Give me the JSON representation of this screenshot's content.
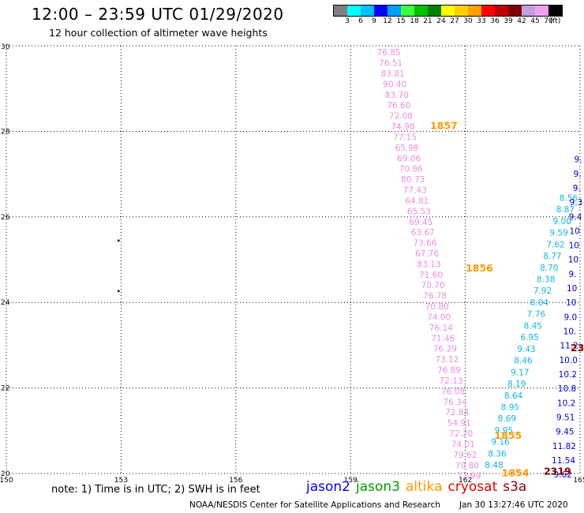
{
  "header": {
    "title": "12:00 – 23:59 UTC 01/29/2020",
    "subtitle": "12 hour collection of altimeter wave heights"
  },
  "legend": {
    "colors": [
      "#808080",
      "#00ffff",
      "#00bfff",
      "#0000ff",
      "#00a0ff",
      "#40ff40",
      "#00c000",
      "#008000",
      "#ffff00",
      "#ffd000",
      "#ffa000",
      "#ff0000",
      "#c00000",
      "#800000",
      "#c0a0e0",
      "#f0a0f0",
      "#000000"
    ],
    "labels": [
      "3",
      "6",
      "9",
      "12",
      "15",
      "18",
      "21",
      "24",
      "27",
      "30",
      "33",
      "36",
      "39",
      "42",
      "45",
      "70",
      "(ft)"
    ]
  },
  "map": {
    "lon_ticks": [
      "150",
      "153",
      "156",
      "159",
      "162",
      "165"
    ],
    "lat_ticks": [
      "20",
      "22",
      "24",
      "26",
      "28",
      "30"
    ],
    "lon_range": [
      150,
      165
    ],
    "lat_range": [
      20,
      30
    ],
    "land_points": [
      {
        "lon": 152.93,
        "lat": 25.45
      },
      {
        "lon": 152.93,
        "lat": 24.27
      }
    ],
    "colors": {
      "altika_track": "#e88ee0",
      "jason3_cyan": "#14b4dc",
      "jason2_blue": "#0000cc",
      "altika_label": "#ff9900",
      "cryosat_label": "#800000"
    },
    "time_labels": [
      {
        "text": "1857",
        "lon": 161.08,
        "lat": 28.15,
        "color": "#ff9900"
      },
      {
        "text": "1856",
        "lon": 162.01,
        "lat": 24.82,
        "color": "#ff9900"
      },
      {
        "text": "1855",
        "lon": 162.76,
        "lat": 20.9,
        "color": "#ff9900"
      },
      {
        "text": "1854",
        "lon": 162.95,
        "lat": 20.03,
        "color": "#ff9900"
      },
      {
        "text": "2319",
        "lon": 164.05,
        "lat": 20.06,
        "color": "#800000"
      },
      {
        "text": "23",
        "lon": 164.75,
        "lat": 22.95,
        "color": "#800000"
      }
    ],
    "tracks": [
      {
        "name": "altika-track",
        "color": "#e88ee0",
        "lon_start": 160.0,
        "lon_end": 162.1,
        "lat_start": 29.85,
        "lat_end": 19.95,
        "values": [
          "76.85",
          "76.51",
          "83.81",
          "90.40",
          "83.70",
          "76.60",
          "72.08",
          "74.98",
          "77.15",
          "65.98",
          "69.06",
          "70.86",
          "80.73",
          "77.43",
          "64.81",
          "65.53",
          "69.45",
          "63.67",
          "73.66",
          "67.76",
          "83.13",
          "71.60",
          "70.70",
          "76.78",
          "70.80",
          "74.00",
          "76.14",
          "71.46",
          "76.29",
          "73.12",
          "76.89",
          "72.13",
          "76.08",
          "76.34",
          "72.84",
          "54.91",
          "72.20",
          "74.01",
          "79.62",
          "70.80",
          "73.99"
        ]
      },
      {
        "name": "jason3-track",
        "color": "#14b4dc",
        "lon_start": 164.7,
        "lon_end": 162.75,
        "lat_start": 26.45,
        "lat_end": 20.2,
        "values": [
          "8.56",
          "8.87",
          "9.00",
          "9.59",
          "7.62",
          "8.77",
          "8.70",
          "8.38",
          "7.92",
          "8.04",
          "7.76",
          "8.45",
          "6.95",
          "9.43",
          "8.46",
          "9.17",
          "8.19",
          "8.64",
          "8.95",
          "8.69",
          "9.95",
          "9.16",
          "8.36",
          "8.48"
        ]
      },
      {
        "name": "jason2-track",
        "color": "#0000cc",
        "lon_start": 164.95,
        "lon_end": 164.55,
        "lat_start": 27.35,
        "lat_end": 19.98,
        "values": [
          "9.",
          "9.",
          "9.",
          "9.3",
          "9.4",
          "10",
          "10",
          "10",
          "9.",
          "10",
          "10",
          "9.0",
          "10.",
          "11.2",
          "10.0",
          "10.2",
          "10.8",
          "10.2",
          "9.51",
          "9.45",
          "11.82",
          "11.54",
          "9.62"
        ]
      }
    ]
  },
  "footer": {
    "note": "note: 1) Time is in UTC; 2) SWH is in feet",
    "sats": [
      {
        "label": "jason2",
        "color": "#0000ff"
      },
      {
        "label": "jason3",
        "color": "#009900"
      },
      {
        "label": "altika",
        "color": "#ff9900"
      },
      {
        "label": "cryosat",
        "color": "#dd0000"
      },
      {
        "label": "s3a",
        "color": "#880000"
      }
    ],
    "credit": "NOAA/NESDIS Center for Satellite Applications and Research",
    "timestamp": "Jan 30 13:27:46 UTC 2020"
  }
}
